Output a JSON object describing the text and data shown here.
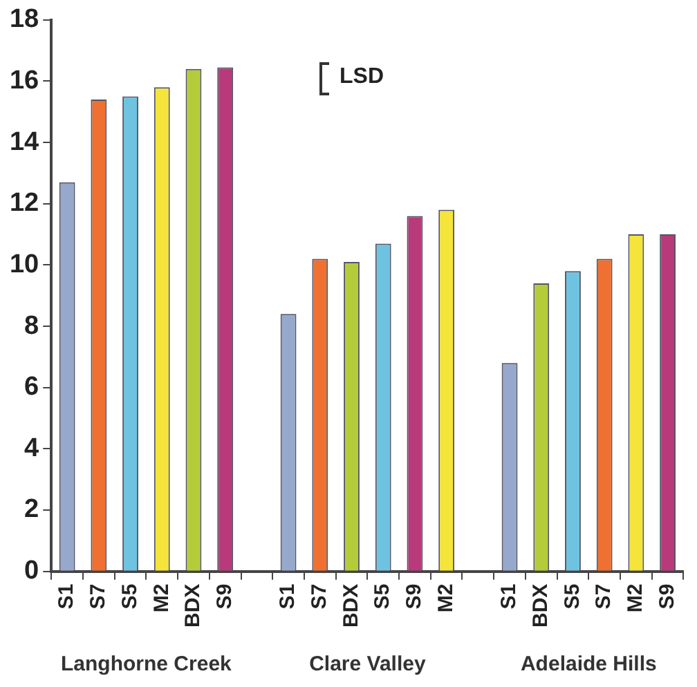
{
  "chart_data": {
    "type": "bar",
    "categories": [
      "S1",
      "S7",
      "S5",
      "M2",
      "BDX",
      "S9",
      null,
      "S1",
      "S7",
      "BDX",
      "S5",
      "S9",
      "M2",
      null,
      "S1",
      "BDX",
      "S5",
      "S7",
      "M2",
      "S9"
    ],
    "values": [
      12.7,
      15.4,
      15.5,
      15.8,
      16.4,
      16.45,
      null,
      8.4,
      10.2,
      10.1,
      10.7,
      11.6,
      11.8,
      null,
      6.8,
      9.4,
      9.8,
      10.2,
      11.0,
      11.0
    ],
    "colors": [
      "#96a8cc",
      "#ef7030",
      "#6ec3e0",
      "#f5e43a",
      "#b5cc3a",
      "#b83a7a",
      "#ffffff",
      "#96a8cc",
      "#ef7030",
      "#b5cc3a",
      "#6ec3e0",
      "#b83a7a",
      "#f5e43a",
      "#ffffff",
      "#96a8cc",
      "#b5cc3a",
      "#6ec3e0",
      "#ef7030",
      "#f5e43a",
      "#b83a7a"
    ],
    "ylim": [
      0,
      18
    ],
    "yticks": [
      0,
      2,
      4,
      6,
      8,
      10,
      12,
      14,
      16,
      18
    ],
    "grid": false,
    "legend": false,
    "annotations": [
      "Langhorne Creek",
      "Clare Valley",
      "Adelaide Hills",
      "LSD"
    ]
  }
}
